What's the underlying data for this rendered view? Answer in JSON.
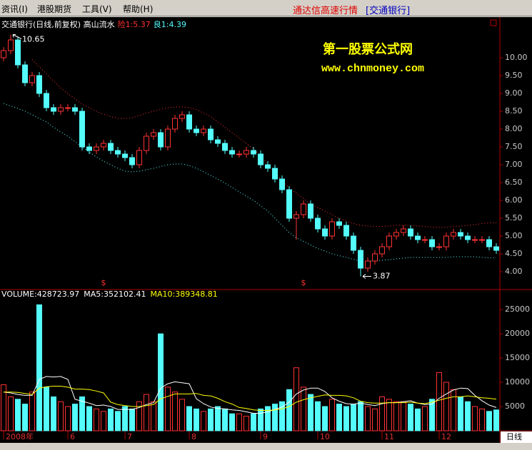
{
  "menu": [
    "资讯(I)",
    "港股期货",
    "工具(V)",
    "帮助(H)"
  ],
  "header": {
    "app_title": "通达信高速行情",
    "stock": "[交通银行]"
  },
  "watermark": {
    "name": "第一股票公式网",
    "url": "www.chnmoney.com"
  },
  "period": "日线",
  "chart_data": [
    {
      "type": "candlestick",
      "title": "交通银行(日线,前复权) 高山流水",
      "categories": [
        null,
        null,
        null,
        null,
        null,
        null,
        null,
        null,
        null,
        null,
        null,
        null,
        null,
        null,
        null,
        null,
        null,
        null,
        null,
        null,
        null,
        null,
        null,
        null,
        null,
        null,
        null,
        null,
        null,
        null,
        null,
        null,
        null,
        null,
        null,
        null,
        null,
        null,
        null,
        null,
        null,
        null,
        null,
        null,
        null,
        null,
        null,
        null,
        null,
        null,
        null,
        null,
        null,
        null,
        null,
        null,
        null,
        null,
        null,
        null,
        null,
        null,
        null,
        null,
        null,
        null,
        null,
        null,
        null,
        null
      ],
      "open": [
        10.0,
        10.2,
        10.5,
        9.8,
        9.3,
        9.5,
        9.0,
        8.6,
        8.5,
        8.6,
        8.6,
        8.5,
        7.5,
        7.4,
        7.5,
        7.6,
        7.4,
        7.3,
        7.2,
        7.0,
        7.4,
        7.8,
        7.9,
        7.5,
        8.0,
        8.3,
        8.4,
        8.0,
        7.9,
        8.0,
        7.7,
        7.6,
        7.4,
        7.3,
        7.3,
        7.4,
        7.3,
        7.0,
        6.9,
        6.6,
        6.3,
        5.5,
        5.6,
        5.9,
        5.5,
        5.2,
        5.0,
        5.4,
        5.3,
        5.0,
        4.6,
        4.1,
        4.3,
        4.5,
        4.7,
        5.0,
        5.1,
        5.2,
        5.0,
        4.9,
        4.9,
        4.7,
        4.7,
        5.0,
        5.1,
        5.0,
        4.9,
        4.9,
        4.9,
        4.7
      ],
      "high": [
        10.3,
        10.65,
        10.6,
        9.9,
        9.6,
        9.6,
        9.1,
        8.7,
        8.7,
        8.7,
        8.7,
        8.6,
        7.6,
        7.6,
        7.7,
        7.7,
        7.5,
        7.4,
        7.3,
        7.5,
        7.9,
        8.0,
        8.0,
        8.1,
        8.4,
        8.5,
        8.5,
        8.1,
        8.1,
        8.1,
        7.8,
        7.7,
        7.5,
        7.4,
        7.5,
        7.5,
        7.4,
        7.1,
        7.0,
        6.7,
        6.4,
        5.7,
        6.0,
        6.0,
        5.6,
        5.3,
        5.5,
        5.5,
        5.4,
        5.1,
        4.7,
        4.4,
        4.6,
        4.8,
        5.1,
        5.2,
        5.3,
        5.3,
        5.1,
        5.0,
        5.0,
        4.8,
        5.1,
        5.2,
        5.2,
        5.1,
        5.0,
        5.0,
        5.0,
        4.8
      ],
      "low": [
        9.9,
        10.1,
        9.7,
        9.2,
        9.2,
        8.9,
        8.5,
        8.4,
        8.4,
        8.5,
        8.4,
        7.4,
        7.3,
        7.3,
        7.4,
        7.3,
        7.2,
        7.1,
        6.9,
        6.9,
        7.3,
        7.7,
        7.4,
        7.4,
        7.9,
        8.2,
        7.9,
        7.8,
        7.8,
        7.6,
        7.5,
        7.3,
        7.2,
        7.2,
        7.2,
        7.2,
        6.9,
        6.8,
        6.5,
        6.2,
        5.4,
        4.9,
        5.5,
        5.4,
        5.1,
        4.9,
        4.9,
        5.2,
        4.9,
        4.5,
        3.87,
        4.0,
        4.2,
        4.4,
        4.6,
        4.9,
        5.0,
        4.9,
        4.8,
        4.8,
        4.6,
        4.6,
        4.6,
        4.9,
        4.9,
        4.8,
        4.8,
        4.8,
        4.6,
        4.5
      ],
      "close": [
        10.2,
        10.5,
        9.8,
        9.3,
        9.5,
        9.0,
        8.6,
        8.5,
        8.6,
        8.6,
        8.5,
        7.5,
        7.4,
        7.5,
        7.6,
        7.4,
        7.3,
        7.2,
        7.0,
        7.4,
        7.8,
        7.9,
        7.5,
        8.0,
        8.3,
        8.4,
        8.0,
        7.9,
        8.0,
        7.7,
        7.6,
        7.4,
        7.3,
        7.3,
        7.4,
        7.3,
        7.0,
        6.9,
        6.6,
        6.3,
        5.5,
        5.6,
        5.9,
        5.5,
        5.2,
        5.0,
        5.4,
        5.3,
        5.0,
        4.6,
        4.1,
        4.3,
        4.5,
        4.7,
        5.0,
        5.1,
        5.2,
        5.0,
        4.9,
        4.9,
        4.7,
        4.7,
        5.0,
        5.1,
        5.0,
        4.9,
        4.9,
        4.9,
        4.7,
        4.6
      ],
      "up_color": "#ff3232",
      "down_color": "#54fcfc",
      "series": [
        {
          "name": "险1:5.37",
          "color": "#ff3232",
          "values": [
            null,
            null,
            null,
            null,
            9.95,
            9.75,
            9.55,
            9.35,
            9.15,
            9.0,
            8.85,
            8.7,
            8.6,
            8.5,
            8.42,
            8.35,
            8.3,
            8.3,
            8.32,
            8.38,
            8.45,
            8.5,
            8.55,
            8.6,
            8.62,
            8.62,
            8.6,
            8.55,
            8.45,
            8.35,
            8.2,
            8.05,
            7.9,
            7.75,
            7.6,
            7.45,
            7.25,
            7.0,
            6.8,
            6.55,
            6.35,
            6.2,
            6.05,
            5.9,
            5.8,
            5.7,
            5.6,
            5.5,
            5.42,
            5.35,
            5.3,
            5.28,
            5.27,
            5.27,
            5.28,
            5.3,
            5.3,
            5.3,
            5.28,
            5.27,
            5.25,
            5.25,
            5.25,
            5.27,
            5.28,
            5.3,
            5.32,
            5.35,
            5.37,
            5.37
          ]
        },
        {
          "name": "良1:4.39",
          "color": "#54fcfc",
          "values": [
            8.72,
            8.65,
            8.58,
            8.5,
            8.4,
            8.3,
            8.2,
            8.05,
            7.92,
            7.8,
            7.65,
            7.5,
            7.35,
            7.22,
            7.1,
            7.0,
            6.9,
            6.82,
            6.8,
            6.82,
            6.86,
            6.9,
            6.95,
            7.0,
            7.02,
            7.02,
            6.98,
            6.9,
            6.8,
            6.7,
            6.6,
            6.48,
            6.36,
            6.24,
            6.12,
            6.0,
            5.85,
            5.7,
            5.5,
            5.3,
            5.1,
            4.95,
            4.85,
            4.75,
            4.65,
            4.58,
            4.5,
            4.45,
            4.4,
            4.35,
            4.3,
            4.3,
            4.3,
            4.32,
            4.34,
            4.36,
            4.38,
            4.4,
            4.4,
            4.4,
            4.4,
            4.4,
            4.4,
            4.42,
            4.42,
            4.42,
            4.42,
            4.4,
            4.39,
            4.39
          ]
        }
      ],
      "max_label": "10.65",
      "min_label": "3.87",
      "signal_marks": {
        "label": "$",
        "indices": [
          14,
          42
        ]
      },
      "ylim": [
        3.52,
        11.08
      ],
      "yticks": [
        {
          "value": 4,
          "label": "4.00"
        },
        {
          "value": 4.5,
          "label": "4.50"
        },
        {
          "value": 5,
          "label": "5.00"
        },
        {
          "value": 5.5,
          "label": "5.50"
        },
        {
          "value": 6,
          "label": "6.00"
        },
        {
          "value": 6.5,
          "label": "6.50"
        },
        {
          "value": 7,
          "label": "7.00"
        },
        {
          "value": 7.5,
          "label": "7.50"
        },
        {
          "value": 8,
          "label": "8.00"
        },
        {
          "value": 8.5,
          "label": "8.50"
        },
        {
          "value": 9,
          "label": "9.00"
        },
        {
          "value": 9.5,
          "label": "9.50"
        },
        {
          "value": 10,
          "label": "10.00"
        }
      ],
      "xticks": [
        {
          "value": 0,
          "label": "2008年"
        },
        {
          "value": 9,
          "label": "6"
        },
        {
          "value": 17,
          "label": "7"
        },
        {
          "value": 26,
          "label": "8"
        },
        {
          "value": 36,
          "label": "9"
        },
        {
          "value": 44,
          "label": "10"
        },
        {
          "value": 53,
          "label": "11"
        },
        {
          "value": 61,
          "label": "12"
        }
      ]
    },
    {
      "type": "bar",
      "title": "VOLUME:428723.97",
      "values": [
        9500,
        7000,
        6500,
        5500,
        8000,
        26000,
        9000,
        7000,
        6000,
        5000,
        5500,
        7000,
        5000,
        4500,
        4000,
        4500,
        4000,
        5000,
        4500,
        6000,
        7500,
        6000,
        20000,
        9000,
        8000,
        6500,
        5000,
        4500,
        4000,
        4500,
        5000,
        4500,
        3500,
        3500,
        3000,
        3500,
        4500,
        5000,
        5500,
        6000,
        8500,
        13000,
        9000,
        7500,
        6000,
        5000,
        6500,
        5500,
        5000,
        5500,
        6000,
        5000,
        4500,
        7000,
        6500,
        6000,
        6000,
        5500,
        4500,
        5000,
        6500,
        12000,
        10000,
        8500,
        7000,
        6000,
        5000,
        4500,
        4000,
        4300
      ],
      "series": [
        {
          "name": "MA5:352102.41",
          "color": "#ffffff",
          "values": [
            8000,
            7800,
            7500,
            7300,
            7300,
            10600,
            11200,
            11100,
            11200,
            10600,
            6500,
            6100,
            5700,
            5200,
            5300,
            5000,
            4400,
            4400,
            4400,
            4800,
            5400,
            5800,
            8800,
            9700,
            10100,
            9900,
            9700,
            6600,
            5600,
            4900,
            4600,
            4500,
            4300,
            4200,
            3900,
            3600,
            3600,
            3900,
            4400,
            4900,
            5900,
            7600,
            8400,
            8800,
            8800,
            8100,
            6800,
            6100,
            5600,
            5500,
            5700,
            5400,
            5200,
            5600,
            5800,
            5800,
            6000,
            6200,
            5700,
            5400,
            5500,
            6700,
            7600,
            8400,
            8800,
            8700,
            7300,
            6200,
            5300,
            4800
          ]
        },
        {
          "name": "MA10:389348.81",
          "color": "#ffff00",
          "values": [
            8000,
            8000,
            7900,
            7700,
            7500,
            8800,
            9100,
            9200,
            9200,
            9000,
            8600,
            8600,
            8500,
            8200,
            7800,
            5900,
            5400,
            5200,
            5000,
            5000,
            5200,
            5400,
            6600,
            7100,
            7600,
            7600,
            7600,
            7700,
            7300,
            7200,
            6700,
            6000,
            5500,
            4800,
            4600,
            4300,
            4200,
            4200,
            4300,
            4500,
            5000,
            5900,
            6400,
            6800,
            7100,
            7400,
            7300,
            7300,
            7200,
            6800,
            6100,
            5800,
            5700,
            5700,
            5800,
            5800,
            5800,
            5900,
            5700,
            5600,
            5900,
            6300,
            6700,
            7000,
            7000,
            7200,
            7000,
            6800,
            6700,
            6500
          ]
        }
      ],
      "ylim": [
        0,
        29000
      ],
      "yticks": [
        5000,
        10000,
        15000,
        20000,
        25000
      ]
    }
  ]
}
